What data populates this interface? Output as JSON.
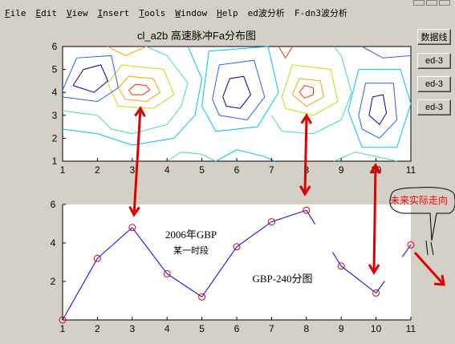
{
  "menu": {
    "items": [
      {
        "first": "F",
        "rest": "ile"
      },
      {
        "first": "E",
        "rest": "dit"
      },
      {
        "first": "V",
        "rest": "iew"
      },
      {
        "first": "I",
        "rest": "nsert"
      },
      {
        "first": "T",
        "rest": "ools"
      },
      {
        "first": "W",
        "rest": "indow"
      },
      {
        "first": "H",
        "rest": "elp"
      },
      {
        "first": "",
        "rest": "ed波分析"
      },
      {
        "first": "",
        "rest": "F-dn3波分析"
      }
    ]
  },
  "side_buttons": [
    "数据线",
    "ed-3",
    "ed-3",
    "ed-3"
  ],
  "chart_data": [
    {
      "type": "contour",
      "title": "cl_a2b 高速脉冲Fa分布图",
      "xlim": [
        1,
        11
      ],
      "ylim": [
        1,
        6
      ],
      "x_ticks": [
        "1",
        "2",
        "3",
        "4",
        "5",
        "6",
        "7",
        "8",
        "9",
        "10",
        "11"
      ],
      "y_ticks": [
        "1",
        "2",
        "3",
        "4",
        "5",
        "6"
      ],
      "peaks": [
        {
          "x": 3.2,
          "y": 4.1,
          "level": "high"
        },
        {
          "x": 8.0,
          "y": 4.0,
          "level": "high"
        },
        {
          "x": 6.0,
          "y": 3.8,
          "level": "low"
        },
        {
          "x": 10.0,
          "y": 3.3,
          "level": "low"
        }
      ]
    },
    {
      "type": "line",
      "title": "",
      "x": [
        1,
        2,
        3,
        4,
        5,
        6,
        7,
        8,
        9,
        10,
        11
      ],
      "series": [
        {
          "values": [
            0,
            3.2,
            4.8,
            2.4,
            1.2,
            3.8,
            5.1,
            5.7,
            2.8,
            1.4,
            3.9
          ]
        }
      ],
      "xlim": [
        1,
        11
      ],
      "ylim": [
        0,
        6
      ],
      "x_ticks": [
        "1",
        "2",
        "3",
        "4",
        "5",
        "6",
        "7",
        "8",
        "9",
        "10",
        "11"
      ],
      "y_ticks": [
        "2",
        "4",
        "6"
      ],
      "annotations": [
        "2006年GBP",
        "某一时段",
        "GBP-240分图",
        "未来实际走向"
      ]
    }
  ],
  "colors": {
    "contour_colors": [
      "#0000a0",
      "#2060ff",
      "#00c0ff",
      "#40e0a0",
      "#c0e000",
      "#ffa000",
      "#ff3000"
    ],
    "line": "#0000ff",
    "marker": "#e00000",
    "arrow": "#e00000",
    "callout_text": "#ff0000"
  }
}
